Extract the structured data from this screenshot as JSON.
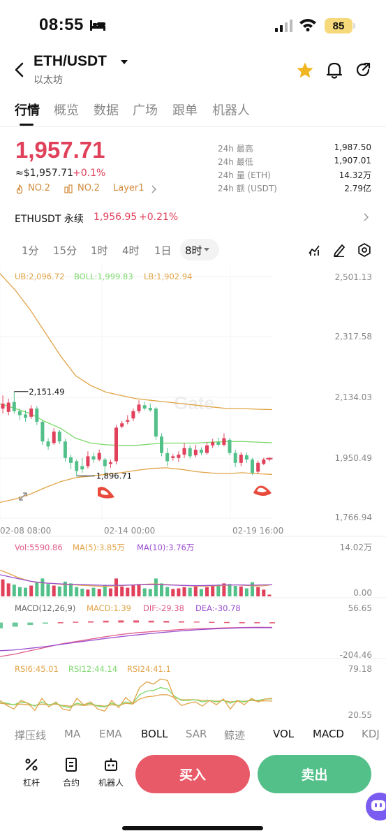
{
  "status_bar": {
    "time": "08:55",
    "battery": "85"
  },
  "header": {
    "pair": "ETH/USDT",
    "subtitle": "以太坊"
  },
  "tabs": [
    "行情",
    "概览",
    "数据",
    "广场",
    "跟单",
    "机器人"
  ],
  "ticker": {
    "price": "1,957.71",
    "usd_price": "≈$1,957.71",
    "change": "+0.1%",
    "badges": {
      "rank1": "NO.2",
      "rank2": "NO.2",
      "sector": "Layer1"
    },
    "stats": [
      {
        "label": "24h  最高",
        "value": "1,987.50"
      },
      {
        "label": "24h  最低",
        "value": "1,907.01"
      },
      {
        "label": "24h  量 (ETH)",
        "value": "14.32万"
      },
      {
        "label": "24h  额 (USDT)",
        "value": "2.79亿"
      }
    ]
  },
  "perpetual": {
    "name": "ETHUSDT 永续",
    "price": "1,956.95",
    "change": "+0.21%"
  },
  "intervals": [
    "1分",
    "15分",
    "1时",
    "4时",
    "1日",
    "8时"
  ],
  "active_interval": "8时",
  "colors": {
    "up": "#e0405a",
    "down": "#53c08a",
    "accent": "#d28a3c",
    "boll_mid": "#7bd86a",
    "boll_band": "#e0a346",
    "macd_dif": "#e05a8a",
    "macd_dea": "#9b4fd1"
  },
  "chart_data": {
    "type": "candlestick",
    "watermark": "Gate",
    "boll_legend": {
      "ub": "UB:2,096.72",
      "boll": "BOLL:1,999.83",
      "lb": "LB:1,902.94"
    },
    "y_ticks": [
      "2,501.13",
      "2,317.58",
      "2,134.03",
      "1,950.49",
      "1,766.94"
    ],
    "ylim": [
      1766.94,
      2501.13
    ],
    "x_ticks": [
      "02-08 08:00",
      "02-14 00:00",
      "02-19 16:00"
    ],
    "annotations": {
      "high": "2,151.49",
      "low": "1,896.71"
    },
    "candles": [
      {
        "o": 2100,
        "c": 2115,
        "h": 2140,
        "l": 2085
      },
      {
        "o": 2090,
        "c": 2118,
        "h": 2130,
        "l": 2080
      },
      {
        "o": 2120,
        "c": 2092,
        "h": 2151.49,
        "l": 2085
      },
      {
        "o": 2092,
        "c": 2080,
        "h": 2100,
        "l": 2065
      },
      {
        "o": 2082,
        "c": 2072,
        "h": 2095,
        "l": 2060
      },
      {
        "o": 2075,
        "c": 2100,
        "h": 2110,
        "l": 2068
      },
      {
        "o": 2100,
        "c": 2060,
        "h": 2108,
        "l": 2050
      },
      {
        "o": 2060,
        "c": 2000,
        "h": 2065,
        "l": 1990
      },
      {
        "o": 2000,
        "c": 1985,
        "h": 2010,
        "l": 1975
      },
      {
        "o": 1995,
        "c": 2030,
        "h": 2040,
        "l": 1990
      },
      {
        "o": 2030,
        "c": 2000,
        "h": 2035,
        "l": 1992
      },
      {
        "o": 2000,
        "c": 1950,
        "h": 2008,
        "l": 1938
      },
      {
        "o": 1952,
        "c": 1935,
        "h": 1960,
        "l": 1915
      },
      {
        "o": 1940,
        "c": 1910,
        "h": 1945,
        "l": 1895
      },
      {
        "o": 1925,
        "c": 1915,
        "h": 1950,
        "l": 1905
      },
      {
        "o": 1925,
        "c": 1955,
        "h": 1970,
        "l": 1918
      },
      {
        "o": 1955,
        "c": 1945,
        "h": 1965,
        "l": 1935
      },
      {
        "o": 1945,
        "c": 1965,
        "h": 1975,
        "l": 1940
      },
      {
        "o": 1945,
        "c": 1925,
        "h": 1950,
        "l": 1896.71
      },
      {
        "o": 1932,
        "c": 1937,
        "h": 1945,
        "l": 1920
      },
      {
        "o": 1940,
        "c": 2042,
        "h": 2050,
        "l": 1930
      },
      {
        "o": 2045,
        "c": 2055,
        "h": 2062,
        "l": 2040
      },
      {
        "o": 2060,
        "c": 2065,
        "h": 2080,
        "l": 2052
      },
      {
        "o": 2070,
        "c": 2092,
        "h": 2100,
        "l": 2062
      },
      {
        "o": 2092,
        "c": 2112,
        "h": 2125,
        "l": 2085
      },
      {
        "o": 2110,
        "c": 2100,
        "h": 2120,
        "l": 2095
      },
      {
        "o": 2102,
        "c": 2095,
        "h": 2115,
        "l": 2090
      },
      {
        "o": 2100,
        "c": 2015,
        "h": 2105,
        "l": 2005
      },
      {
        "o": 2015,
        "c": 1965,
        "h": 2025,
        "l": 1955
      },
      {
        "o": 1965,
        "c": 1940,
        "h": 1980,
        "l": 1925
      },
      {
        "o": 1950,
        "c": 1955,
        "h": 1962,
        "l": 1942
      },
      {
        "o": 1950,
        "c": 1960,
        "h": 1970,
        "l": 1938
      },
      {
        "o": 1960,
        "c": 1980,
        "h": 1995,
        "l": 1950
      },
      {
        "o": 1980,
        "c": 1955,
        "h": 1988,
        "l": 1948
      },
      {
        "o": 1958,
        "c": 1975,
        "h": 1990,
        "l": 1952
      },
      {
        "o": 1975,
        "c": 1965,
        "h": 1982,
        "l": 1958
      },
      {
        "o": 1965,
        "c": 1988,
        "h": 1998,
        "l": 1960
      },
      {
        "o": 1988,
        "c": 1998,
        "h": 2008,
        "l": 1980
      },
      {
        "o": 1998,
        "c": 1990,
        "h": 2012,
        "l": 1985
      },
      {
        "o": 1990,
        "c": 2010,
        "h": 2025,
        "l": 1985
      },
      {
        "o": 2005,
        "c": 1965,
        "h": 2010,
        "l": 1958
      },
      {
        "o": 1965,
        "c": 1935,
        "h": 1975,
        "l": 1922
      },
      {
        "o": 1935,
        "c": 1960,
        "h": 1968,
        "l": 1925
      },
      {
        "o": 1958,
        "c": 1945,
        "h": 1966,
        "l": 1935
      },
      {
        "o": 1945,
        "c": 1905,
        "h": 1950,
        "l": 1898
      },
      {
        "o": 1908,
        "c": 1935,
        "h": 1942,
        "l": 1902
      },
      {
        "o": 1932,
        "c": 1945,
        "h": 1950,
        "l": 1928
      },
      {
        "o": 1945,
        "c": 1948,
        "h": 1952,
        "l": 1940
      }
    ],
    "boll_upper": [
      2510,
      2460,
      2400,
      2330,
      2260,
      2200,
      2170,
      2150,
      2140,
      2130,
      2125,
      2120,
      2115,
      2110,
      2105,
      2100,
      2100,
      2098,
      2097
    ],
    "boll_mid": [
      2115,
      2100,
      2085,
      2060,
      2040,
      2010,
      1995,
      1990,
      1988,
      1988,
      1992,
      1995,
      1995,
      1995,
      1998,
      2000,
      2000,
      1998,
      1996
    ],
    "boll_lower": [
      1815,
      1825,
      1840,
      1860,
      1878,
      1890,
      1895,
      1900,
      1905,
      1912,
      1918,
      1920,
      1915,
      1908,
      1904,
      1902,
      1905,
      1902,
      1900
    ],
    "volume": {
      "legend": {
        "vol": "Vol:5590.86",
        "ma5": "MA(5):3.85万",
        "ma10": "MA(10):3.76万"
      },
      "y_ticks": [
        "14.02万",
        "0.00"
      ],
      "ylim": [
        0,
        140200
      ],
      "values": [
        55000,
        42000,
        38000,
        30000,
        28000,
        35000,
        45000,
        58000,
        40000,
        35000,
        32000,
        48000,
        42000,
        30000,
        25000,
        22000,
        28000,
        24000,
        36000,
        26000,
        58000,
        32000,
        28000,
        38000,
        40000,
        26000,
        24000,
        58000,
        42000,
        30000,
        24000,
        26000,
        30000,
        28000,
        32000,
        24000,
        30000,
        34000,
        38000,
        42000,
        40000,
        34000,
        32000,
        26000,
        46000,
        30000,
        22000,
        5590.86
      ],
      "ma5": [
        85000,
        78000,
        70000,
        62000,
        56000,
        50000,
        46000,
        44000,
        43000,
        42000,
        40000,
        38000,
        38000,
        37000,
        36000,
        35000,
        34000,
        33000,
        32000,
        33000,
        34000,
        35000,
        36000,
        37000,
        38000,
        39000,
        40000,
        40000,
        39000,
        38000,
        37000,
        36000,
        35000,
        34000,
        33000,
        33000,
        34000,
        34000,
        35000,
        36000,
        37000,
        37000,
        36000,
        35000,
        34000,
        34000,
        35000,
        38500
      ],
      "ma10": [
        70000,
        66000,
        62000,
        58000,
        54000,
        50000,
        47000,
        45000,
        43000,
        42000,
        41000,
        40000,
        39000,
        38500,
        38000,
        37500,
        37000,
        36500,
        36000,
        36000,
        36000,
        36000,
        36500,
        37000,
        37500,
        38000,
        38000,
        38000,
        37500,
        37000,
        36500,
        36000,
        35500,
        35000,
        35000,
        35000,
        35500,
        36000,
        36500,
        37000,
        37000,
        37000,
        36800,
        36500,
        36500,
        37000,
        37300,
        37600
      ]
    },
    "macd": {
      "legend": {
        "macd": "MACD(12,26,9)",
        "hist": "MACD:1.39",
        "dif": "DIF:-29.38",
        "dea": "DEA:-30.78"
      },
      "y_ticks": [
        "56.65",
        "-204.46"
      ],
      "ylim": [
        -204.46,
        56.65
      ],
      "dif": [
        -205,
        -190,
        -170,
        -150,
        -130,
        -115,
        -100,
        -85,
        -72,
        -62,
        -55,
        -48,
        -42,
        -38,
        -35,
        -32,
        -30,
        -29,
        -29.38
      ],
      "dea": [
        -170,
        -165,
        -155,
        -145,
        -132,
        -120,
        -108,
        -96,
        -85,
        -75,
        -66,
        -58,
        -50,
        -44,
        -39,
        -35,
        -32,
        -31,
        -30.78
      ]
    },
    "rsi": {
      "legend": {
        "rsi6": "RSI6:45.01",
        "rsi12": "RSI12:44.14",
        "rsi24": "RSI24:41.1"
      },
      "y_ticks": [
        "79.18",
        "20.55"
      ],
      "ylim": [
        20.55,
        79.18
      ],
      "rsi6": [
        42,
        35,
        30,
        42,
        38,
        28,
        45,
        33,
        40,
        30,
        28,
        45,
        36,
        40,
        30,
        27,
        42,
        32,
        46,
        38,
        60,
        68,
        65,
        72,
        70,
        45,
        35,
        38,
        40,
        34,
        42,
        36,
        44,
        30,
        42,
        36,
        45,
        40,
        44,
        45.01
      ],
      "rsi12": [
        40,
        38,
        36,
        40,
        38,
        34,
        40,
        36,
        38,
        34,
        32,
        38,
        36,
        38,
        34,
        33,
        38,
        35,
        40,
        38,
        50,
        55,
        56,
        60,
        58,
        48,
        42,
        42,
        43,
        40,
        42,
        40,
        42,
        38,
        42,
        40,
        43,
        42,
        44,
        44.14
      ],
      "rsi24": [
        38,
        37,
        36,
        37,
        36,
        35,
        37,
        36,
        37,
        35,
        34,
        36,
        35,
        36,
        35,
        34,
        36,
        35,
        38,
        37,
        44,
        47,
        48,
        50,
        50,
        46,
        43,
        43,
        43,
        42,
        42,
        41,
        42,
        40,
        41,
        41,
        42,
        41,
        41.5,
        41.1
      ]
    }
  },
  "indicator_bar": [
    "撑压线",
    "MA",
    "EMA",
    "BOLL",
    "SAR",
    "鲸迹",
    "VOL",
    "MACD",
    "KDJ"
  ],
  "bottom_bar": {
    "leverage": "杠杆",
    "contract": "合约",
    "bot": "机器人",
    "buy": "买入",
    "sell": "卖出"
  }
}
